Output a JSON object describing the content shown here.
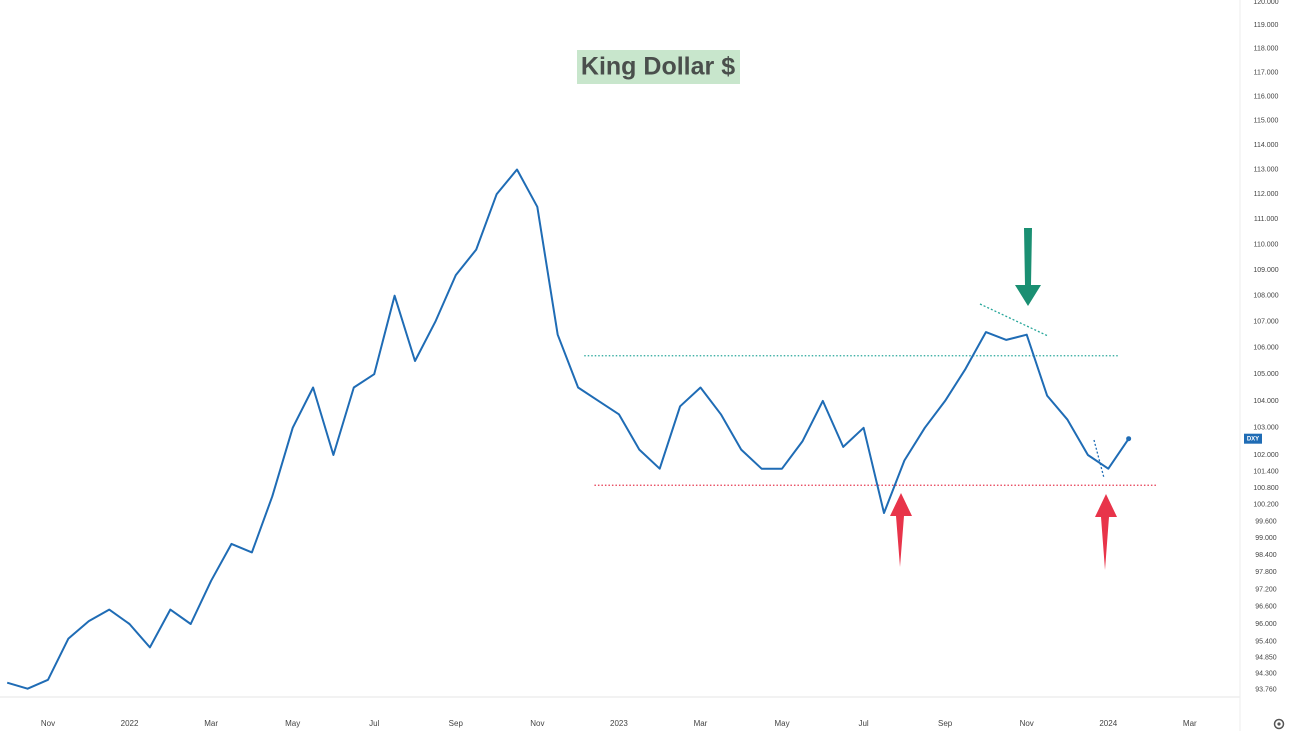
{
  "chart_data": {
    "type": "line",
    "title": "King Dollar $",
    "categories": [
      null,
      null,
      "Nov",
      null,
      null,
      null,
      "2022",
      null,
      null,
      null,
      "Mar",
      null,
      null,
      null,
      "May",
      null,
      null,
      null,
      "Jul",
      null,
      null,
      null,
      "Sep",
      null,
      null,
      null,
      "Nov",
      null,
      null,
      null,
      "2023",
      null,
      null,
      null,
      "Mar",
      null,
      null,
      null,
      "May",
      null,
      null,
      null,
      "Jul",
      null,
      null,
      null,
      "Sep",
      null,
      null,
      null,
      "Nov",
      null,
      null,
      null,
      "2024",
      null,
      null,
      null,
      "Mar",
      null
    ],
    "series": [
      {
        "name": "DXY",
        "color": "#1f6cb5",
        "values": [
          94.0,
          93.8,
          94.1,
          95.5,
          96.1,
          96.5,
          96.0,
          95.2,
          96.5,
          96.0,
          97.5,
          98.8,
          98.5,
          100.5,
          103.0,
          104.5,
          102.0,
          104.5,
          105.0,
          108.0,
          105.5,
          107.0,
          108.8,
          109.8,
          112.0,
          113.0,
          111.5,
          106.5,
          104.5,
          104.0,
          103.5,
          102.2,
          101.5,
          103.8,
          104.5,
          103.5,
          102.2,
          101.5,
          101.5,
          102.5,
          104.0,
          102.3,
          103.0,
          99.9,
          101.8,
          103.0,
          104.0,
          105.2,
          106.6,
          106.3,
          106.5,
          104.2,
          103.3,
          102.0,
          101.5,
          102.6,
          null,
          null,
          null,
          null
        ]
      }
    ],
    "reference_lines": [
      {
        "value": 105.7,
        "color": "#26a69a"
      },
      {
        "value": 100.9,
        "color": "#e53950"
      }
    ],
    "ylim": [
      93.52,
      120
    ],
    "log_scale": true,
    "grid": false,
    "yticks": [
      {
        "value": 120,
        "label": "120.000"
      },
      {
        "value": 119,
        "label": "119.000"
      },
      {
        "value": 118,
        "label": "118.000"
      },
      {
        "value": 117,
        "label": "117.000"
      },
      {
        "value": 116,
        "label": "116.000"
      },
      {
        "value": 115,
        "label": "115.000"
      },
      {
        "value": 114,
        "label": "114.000"
      },
      {
        "value": 113,
        "label": "113.000"
      },
      {
        "value": 112,
        "label": "112.000"
      },
      {
        "value": 111,
        "label": "111.000"
      },
      {
        "value": 110,
        "label": "110.000"
      },
      {
        "value": 109,
        "label": "109.000"
      },
      {
        "value": 108,
        "label": "108.000"
      },
      {
        "value": 107,
        "label": "107.000"
      },
      {
        "value": 106,
        "label": "106.000"
      },
      {
        "value": 105,
        "label": "105.000"
      },
      {
        "value": 104,
        "label": "104.000"
      },
      {
        "value": 103,
        "label": "103.000"
      },
      {
        "value": 102,
        "label": "102.000"
      },
      {
        "value": 101.4,
        "label": "101.400"
      },
      {
        "value": 100.8,
        "label": "100.800"
      },
      {
        "value": 100.2,
        "label": "100.200"
      },
      {
        "value": 99.6,
        "label": "99.600"
      },
      {
        "value": 99,
        "label": "99.000"
      },
      {
        "value": 98.4,
        "label": "98.400"
      },
      {
        "value": 97.8,
        "label": "97.800"
      },
      {
        "value": 97.2,
        "label": "97.200"
      },
      {
        "value": 96.6,
        "label": "96.600"
      },
      {
        "value": 96,
        "label": "96.000"
      },
      {
        "value": 95.4,
        "label": "95.400"
      },
      {
        "value": 94.85,
        "label": "94.850"
      },
      {
        "value": 94.3,
        "label": "94.300"
      },
      {
        "value": 93.76,
        "label": "93.760"
      }
    ]
  }
}
